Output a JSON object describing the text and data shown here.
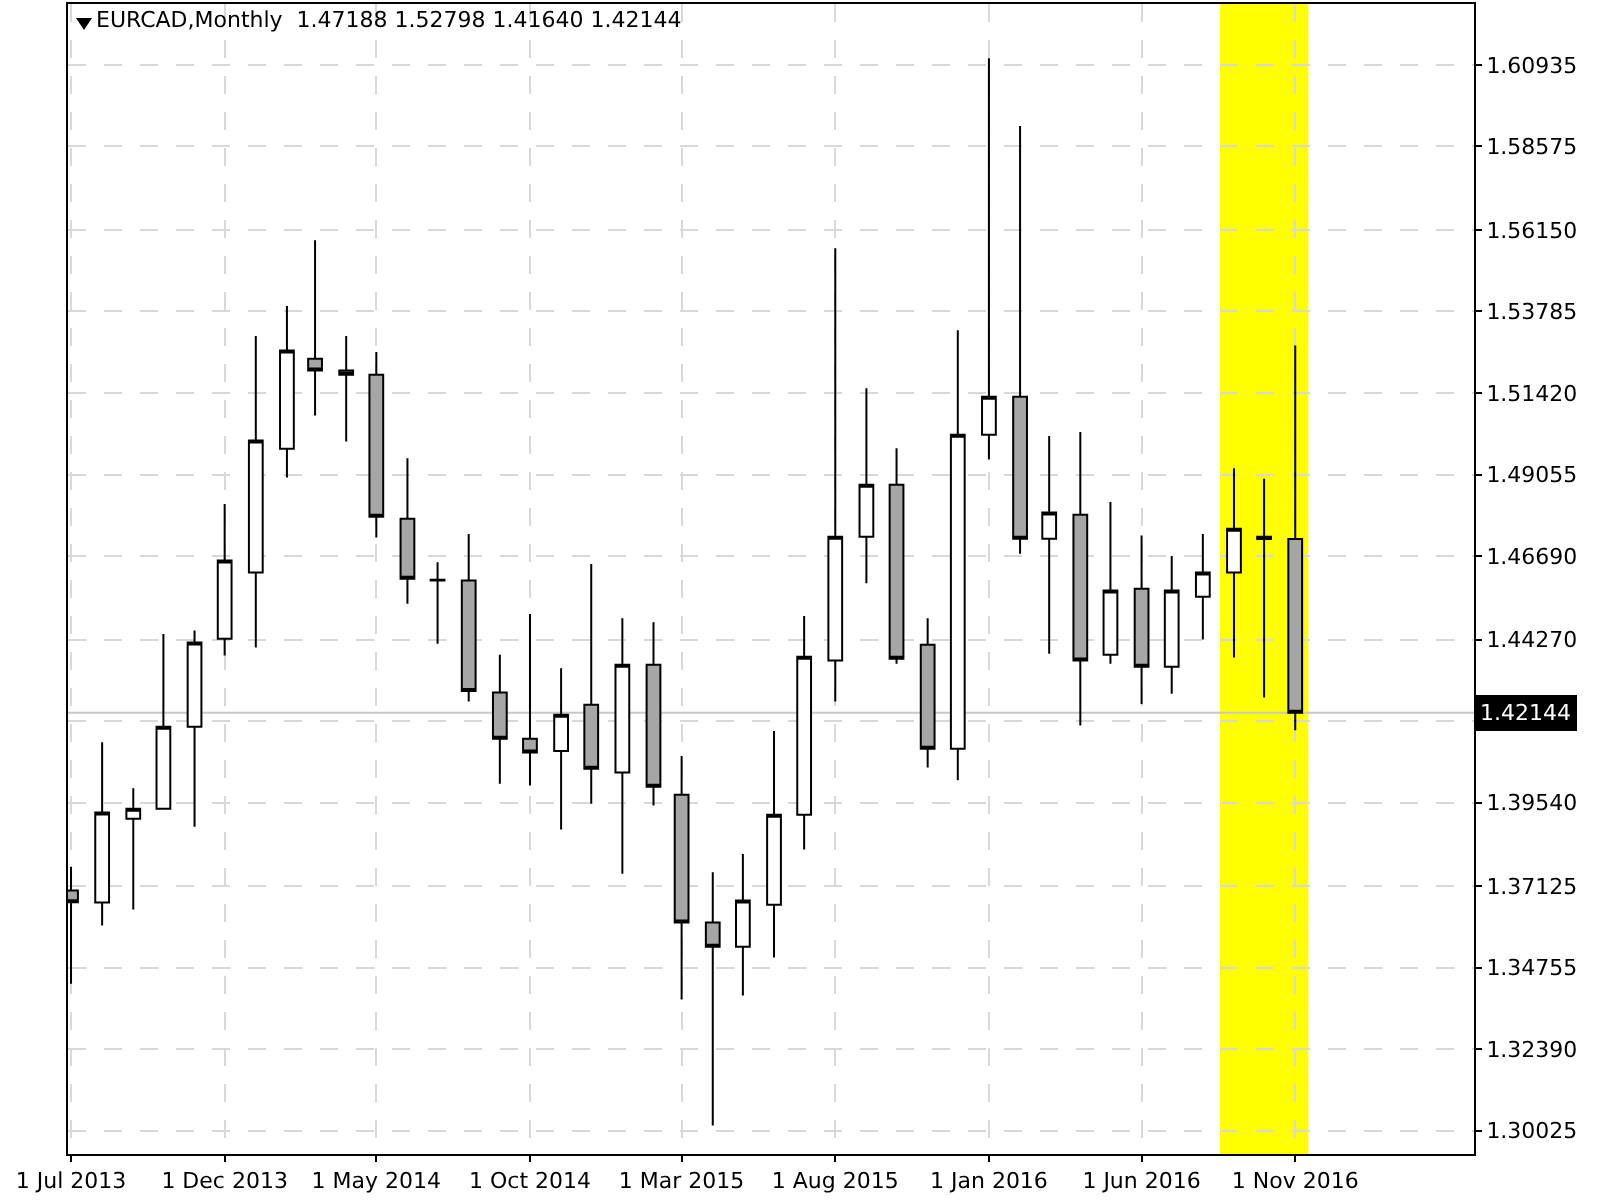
{
  "chart_data": {
    "type": "candlestick",
    "title": "EURCAD,Monthly  1.47188 1.52798 1.41640 1.42144",
    "x": [
      "2013-07",
      "2013-08",
      "2013-09",
      "2013-10",
      "2013-11",
      "2013-12",
      "2014-01",
      "2014-02",
      "2014-03",
      "2014-04",
      "2014-05",
      "2014-06",
      "2014-07",
      "2014-08",
      "2014-09",
      "2014-10",
      "2014-11",
      "2014-12",
      "2015-01",
      "2015-02",
      "2015-03",
      "2015-04",
      "2015-05",
      "2015-06",
      "2015-07",
      "2015-08",
      "2015-09",
      "2015-10",
      "2015-11",
      "2015-12",
      "2016-01",
      "2016-02",
      "2016-03",
      "2016-04",
      "2016-05",
      "2016-06",
      "2016-07",
      "2016-08",
      "2016-09",
      "2016-10",
      "2016-11"
    ],
    "ohlc": [
      [
        1.3699,
        1.3768,
        1.3429,
        1.3665
      ],
      [
        1.3664,
        1.4129,
        1.3598,
        1.3925
      ],
      [
        1.3907,
        1.3996,
        1.3644,
        1.3936
      ],
      [
        1.3936,
        1.4443,
        1.3936,
        1.4174
      ],
      [
        1.4174,
        1.4453,
        1.3884,
        1.4418
      ],
      [
        1.4429,
        1.482,
        1.4381,
        1.4656
      ],
      [
        1.4621,
        1.5307,
        1.4404,
        1.5004
      ],
      [
        1.498,
        1.5394,
        1.4897,
        1.5265
      ],
      [
        1.5241,
        1.5585,
        1.5077,
        1.5207
      ],
      [
        1.5207,
        1.5307,
        1.5001,
        1.5195
      ],
      [
        1.5195,
        1.5261,
        1.4723,
        1.4783
      ],
      [
        1.4777,
        1.4953,
        1.4531,
        1.4603
      ],
      [
        1.46,
        1.4651,
        1.4415,
        1.4598
      ],
      [
        1.4598,
        1.4733,
        1.4247,
        1.4278
      ],
      [
        1.4273,
        1.4383,
        1.4009,
        1.4139
      ],
      [
        1.4139,
        1.4501,
        1.4004,
        1.4099
      ],
      [
        1.4104,
        1.4344,
        1.3876,
        1.4209
      ],
      [
        1.4238,
        1.4646,
        1.3951,
        1.4052
      ],
      [
        1.4041,
        1.4489,
        1.3748,
        1.4354
      ],
      [
        1.4354,
        1.4477,
        1.3946,
        1.4
      ],
      [
        1.3977,
        1.4089,
        1.3383,
        1.3606
      ],
      [
        1.3606,
        1.3752,
        1.3018,
        1.3536
      ],
      [
        1.3536,
        1.3805,
        1.3395,
        1.367
      ],
      [
        1.3658,
        1.4162,
        1.3505,
        1.3919
      ],
      [
        1.3919,
        1.4495,
        1.3818,
        1.4377
      ],
      [
        1.4366,
        1.5562,
        1.4247,
        1.4725
      ],
      [
        1.4725,
        1.5156,
        1.459,
        1.4876
      ],
      [
        1.4876,
        1.4982,
        1.4357,
        1.4371
      ],
      [
        1.4412,
        1.4489,
        1.4056,
        1.411
      ],
      [
        1.411,
        1.5324,
        1.4019,
        1.5021
      ],
      [
        1.5021,
        1.6113,
        1.4949,
        1.5131
      ],
      [
        1.5131,
        1.5916,
        1.4676,
        1.4719
      ],
      [
        1.4719,
        1.5017,
        1.4386,
        1.4795
      ],
      [
        1.4789,
        1.5029,
        1.4178,
        1.4366
      ],
      [
        1.4383,
        1.4826,
        1.4357,
        1.4569
      ],
      [
        1.4574,
        1.4729,
        1.424,
        1.4348
      ],
      [
        1.4348,
        1.4669,
        1.427,
        1.4569
      ],
      [
        1.4551,
        1.4733,
        1.4427,
        1.4621
      ],
      [
        1.4621,
        1.4924,
        1.4375,
        1.4748
      ],
      [
        1.4725,
        1.4893,
        1.4259,
        1.47188
      ],
      [
        1.47188,
        1.52798,
        1.4164,
        1.42144
      ]
    ],
    "xlim": [
      "2013-06-28",
      "2017-04-28"
    ],
    "xticks": [
      {
        "value": "2013-07-01",
        "label": "1 Jul 2013"
      },
      {
        "value": "2013-12-01",
        "label": "1 Dec 2013"
      },
      {
        "value": "2014-05-01",
        "label": "1 May 2014"
      },
      {
        "value": "2014-10-01",
        "label": "1 Oct 2014"
      },
      {
        "value": "2015-03-01",
        "label": "1 Mar 2015"
      },
      {
        "value": "2015-08-01",
        "label": "1 Aug 2015"
      },
      {
        "value": "2016-01-01",
        "label": "1 Jan 2016"
      },
      {
        "value": "2016-06-01",
        "label": "1 Jun 2016"
      },
      {
        "value": "2016-11-01",
        "label": "1 Nov 2016"
      }
    ],
    "ylim": [
      1.2935,
      1.627
    ],
    "yticks": [
      1.30025,
      {
        "value": 1.3239,
        "label": "1.32390"
      },
      1.34755,
      1.37125,
      {
        "value": 1.3954,
        "label": "1.39540"
      },
      {
        "value": 1.41905,
        "label": null
      },
      {
        "value": 1.4427,
        "label": "1.44270"
      },
      {
        "value": 1.4669,
        "label": "1.46690"
      },
      1.49055,
      {
        "value": 1.5142,
        "label": "1.51420"
      },
      1.53785,
      {
        "value": 1.5615,
        "label": "1.56150"
      },
      1.58575,
      1.60935
    ],
    "ref_lines": [
      {
        "axis": "y",
        "value": 1.42144,
        "label": "1.42144",
        "color": "#c8c8c8"
      }
    ],
    "bands": [
      {
        "axis": "x",
        "from": "2016-08-18",
        "to": "2016-11-14",
        "color": "#ffff00"
      }
    ],
    "grid": true,
    "legend": false
  }
}
